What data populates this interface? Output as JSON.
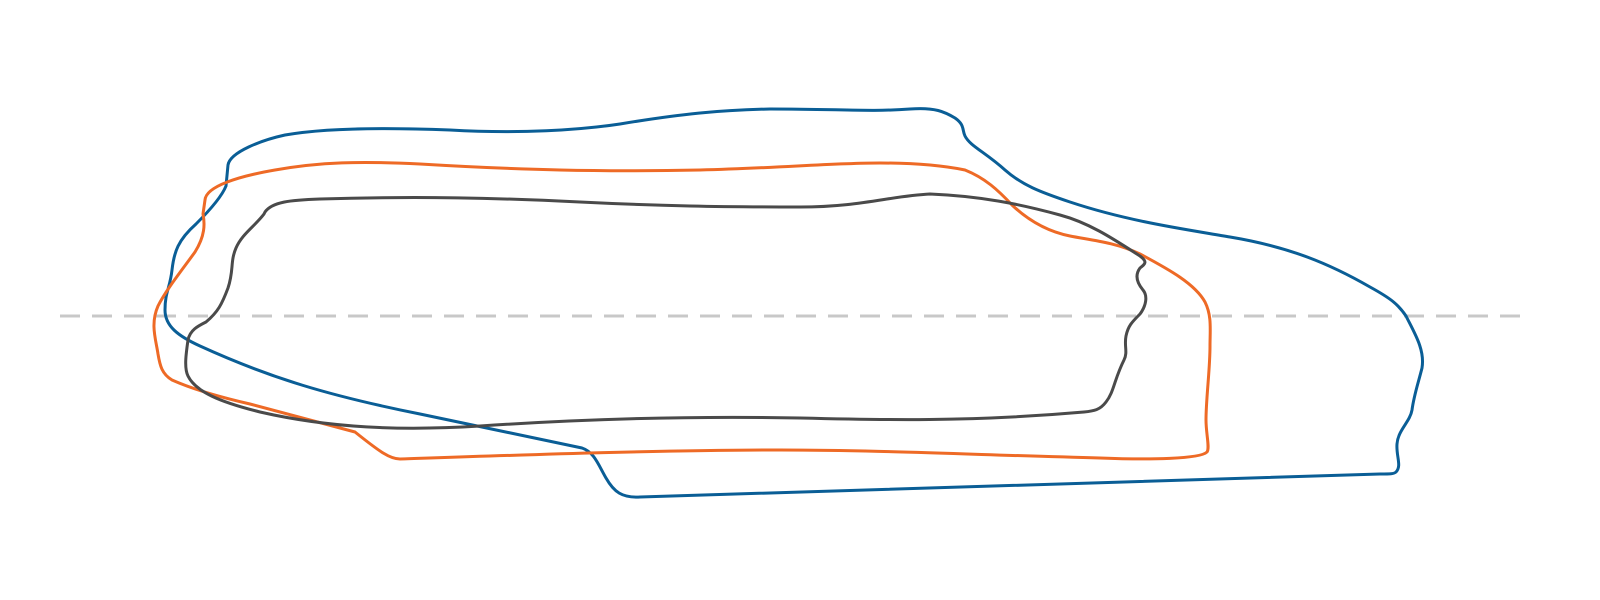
{
  "colors": {
    "background": "#ffffff",
    "outer_outline": "#0a5e96",
    "middle_outline": "#ee6a26",
    "inner_outline": "#4a4a4a",
    "baseline": "#c8c8c8"
  },
  "diagram": {
    "outlines": [
      {
        "id": "outer-outline",
        "color_key": "outer_outline"
      },
      {
        "id": "middle-outline",
        "color_key": "middle_outline"
      },
      {
        "id": "inner-outline",
        "color_key": "inner_outline"
      }
    ],
    "baseline_style": "dashed"
  }
}
